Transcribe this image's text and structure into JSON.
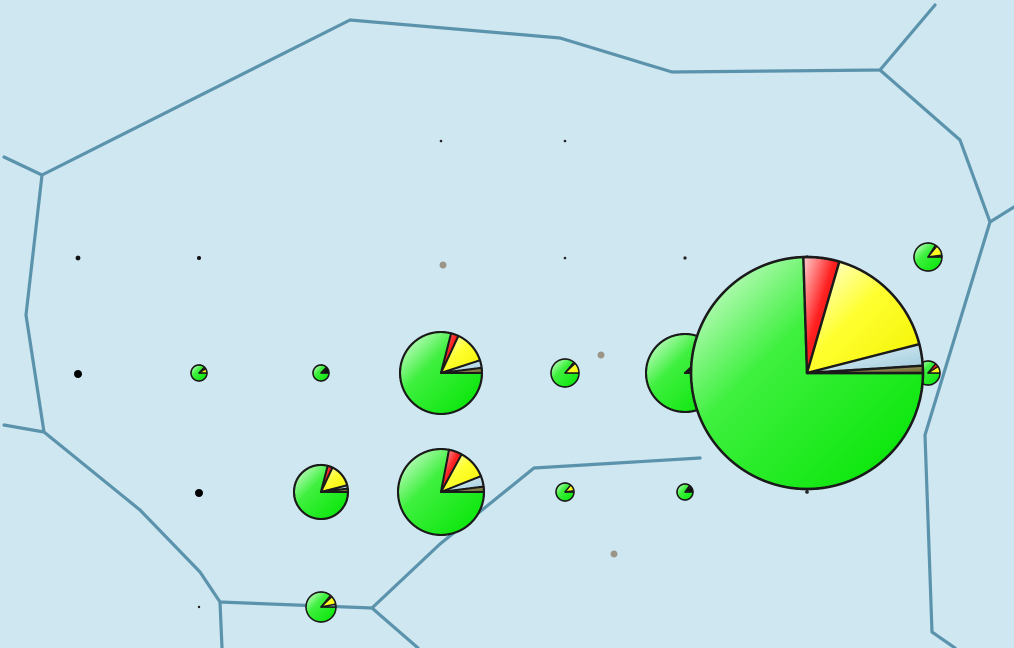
{
  "map": {
    "background_color": "#cfe7f0",
    "border_color": "#5b93ad",
    "slice_outline_color": "#1a1a1a",
    "category_colors": {
      "green": "#00ff00",
      "red": "#ff1a1a",
      "yellow": "#ffff1a",
      "lightblue": "#a9d1e0",
      "olive": "#7d7a3b",
      "black": "#000000"
    },
    "pie_markers": [
      {
        "id": "big-east",
        "fractions": {
          "green": 0.745,
          "red": 0.05,
          "yellow": 0.165,
          "lightblue": 0.03,
          "olive": 0.01
        }
      },
      {
        "id": "mid-upper",
        "fractions": {
          "green": 0.79,
          "red": 0.03,
          "yellow": 0.13,
          "lightblue": 0.03,
          "olive": 0.02
        }
      },
      {
        "id": "mid-lower",
        "fractions": {
          "green": 0.78,
          "red": 0.05,
          "yellow": 0.11,
          "lightblue": 0.04,
          "olive": 0.02
        }
      },
      {
        "id": "west-lower",
        "fractions": {
          "green": 0.79,
          "red": 0.03,
          "yellow": 0.14,
          "lightblue": 0.02,
          "olive": 0.02
        }
      },
      {
        "id": "east-partial",
        "fractions": {
          "green": 0.88,
          "red": 0.05,
          "yellow": 0.07
        }
      },
      {
        "id": "south-small",
        "fractions": {
          "green": 0.86,
          "red": 0.02,
          "yellow": 0.09,
          "lightblue": 0.03
        }
      },
      {
        "id": "small-a",
        "fractions": {
          "green": 0.86,
          "red": 0.02,
          "yellow": 0.12
        }
      },
      {
        "id": "small-b",
        "fractions": {
          "green": 0.84,
          "red": 0.02,
          "yellow": 0.12,
          "olive": 0.02
        }
      },
      {
        "id": "small-c",
        "fractions": {
          "green": 0.86,
          "red": 0.05,
          "yellow": 0.09
        }
      },
      {
        "id": "small-d",
        "fractions": {
          "green": 0.86,
          "yellow": 0.12,
          "olive": 0.02
        }
      },
      {
        "id": "small-e",
        "fractions": {
          "green": 0.87,
          "red": 0.04,
          "yellow": 0.09
        }
      },
      {
        "id": "small-f",
        "fractions": {
          "green": 0.87,
          "black": 0.13
        }
      },
      {
        "id": "small-g",
        "fractions": {
          "green": 0.85,
          "black": 0.15
        }
      },
      {
        "id": "small-h",
        "fractions": {
          "green": 0.88,
          "black": 0.12
        }
      }
    ]
  }
}
